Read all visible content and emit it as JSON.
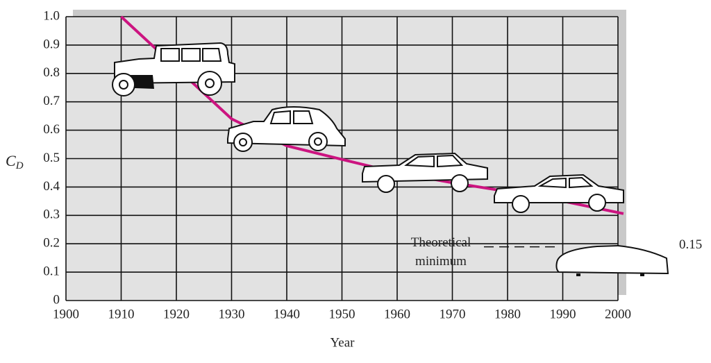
{
  "chart_data": {
    "type": "line",
    "ylabel": "C",
    "ylabel_subscript": "D",
    "xlabel": "Year",
    "x": [
      1910,
      1920,
      1930,
      1940,
      1950,
      1960,
      1970,
      1980,
      1990,
      2001
    ],
    "series": [
      {
        "color": "#cc1480",
        "values": [
          1.0,
          0.82,
          0.64,
          0.545,
          0.497,
          0.45,
          0.415,
          0.384,
          0.35,
          0.306
        ]
      }
    ],
    "xlim": [
      1900,
      2000
    ],
    "xticks": [
      1900,
      1910,
      1920,
      1930,
      1940,
      1950,
      1960,
      1970,
      1980,
      1990,
      2000
    ],
    "ylim": [
      0,
      1
    ],
    "yticks": [
      0,
      0.1,
      0.2,
      0.3,
      0.4,
      0.5,
      0.6,
      0.7,
      0.8,
      0.9,
      {
        "value": 1,
        "label": "1.0"
      }
    ],
    "grid": true,
    "annotation": {
      "text": [
        "Theoretical",
        "minimum"
      ],
      "value": 0.15
    }
  }
}
